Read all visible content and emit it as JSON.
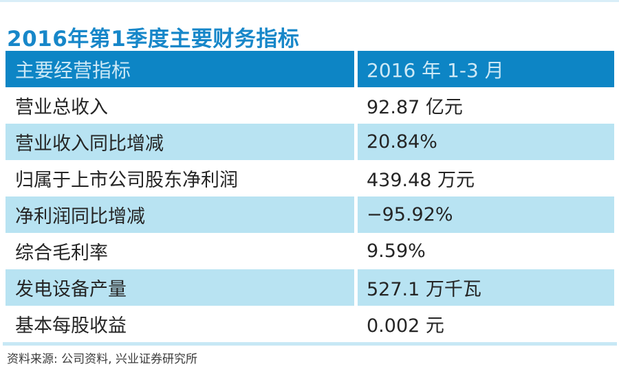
{
  "page": {
    "title": "2016年第1季度主要财务指标",
    "source_note": "资料来源: 公司资料, 兴业证券研究所"
  },
  "table": {
    "columns": [
      {
        "label": "主要经营指标"
      },
      {
        "label": "2016 年 1-3 月"
      }
    ],
    "rows": [
      {
        "label": "营业总收入",
        "value": "92.87 亿元"
      },
      {
        "label": "营业收入同比增减",
        "value": "20.84%"
      },
      {
        "label": "归属于上市公司股东净利润",
        "value": "439.48 万元"
      },
      {
        "label": "净利润同比增减",
        "value": "−95.92%"
      },
      {
        "label": "综合毛利率",
        "value": "9.59%"
      },
      {
        "label": "发电设备产量",
        "value": "527.1 万千瓦"
      },
      {
        "label": "基本每股收益",
        "value": "0.002 元"
      }
    ]
  },
  "colors": {
    "title_text": "#1787c9",
    "header_bg": "#0d85c5",
    "header_text": "#cde9f6",
    "row_alt_bg": "#b8e3f2",
    "row_text": "#252525",
    "top_rule": "#d9eef8",
    "bottom_rule": "#c7e8f5"
  },
  "chart_data": {
    "type": "table",
    "title": "2016年第1季度主要财务指标",
    "columns": [
      "主要经营指标",
      "2016 年 1-3 月"
    ],
    "rows": [
      [
        "营业总收入",
        "92.87 亿元"
      ],
      [
        "营业收入同比增减",
        "20.84%"
      ],
      [
        "归属于上市公司股东净利润",
        "439.48 万元"
      ],
      [
        "净利润同比增减",
        "−95.92%"
      ],
      [
        "综合毛利率",
        "9.59%"
      ],
      [
        "发电设备产量",
        "527.1 万千瓦"
      ],
      [
        "基本每股收益",
        "0.002 元"
      ]
    ],
    "numeric_values": {
      "营业总收入_亿元": 92.87,
      "营业收入同比增减_pct": 20.84,
      "归属于上市公司股东净利润_万元": 439.48,
      "净利润同比增减_pct": -95.92,
      "综合毛利率_pct": 9.59,
      "发电设备产量_万千瓦": 527.1,
      "基本每股收益_元": 0.002
    },
    "source": "资料来源: 公司资料, 兴业证券研究所",
    "layout_hints": {
      "alternating_row_shading": true,
      "header_position": "top"
    }
  }
}
